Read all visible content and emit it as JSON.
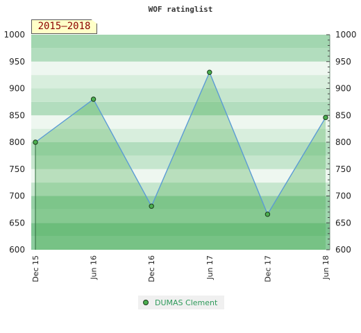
{
  "chart_data": {
    "type": "area",
    "title": "WOF ratinglist",
    "period_label": "2015–2018",
    "categories": [
      "Dec 15",
      "Jun 16",
      "Dec 16",
      "Jun 17",
      "Dec 17",
      "Jun 18"
    ],
    "series": [
      {
        "name": "DUMAS Clement",
        "values": [
          800,
          880,
          681,
          930,
          666,
          846
        ]
      }
    ],
    "ylim": [
      600,
      1000
    ],
    "yticks": [
      600,
      650,
      700,
      750,
      800,
      850,
      900,
      950,
      1000
    ],
    "yaxis_both_sides": true,
    "grid": "horizontal bands",
    "legend_position": "bottom-center",
    "colors": {
      "line": "#5b9bd5",
      "area": "#4caf50",
      "marker": "#4caf50",
      "marker_edge": "#1a3a1a",
      "legend_text": "#2e9a5a",
      "badge_bg": "#ffffc8",
      "badge_text": "#8b0000"
    }
  }
}
